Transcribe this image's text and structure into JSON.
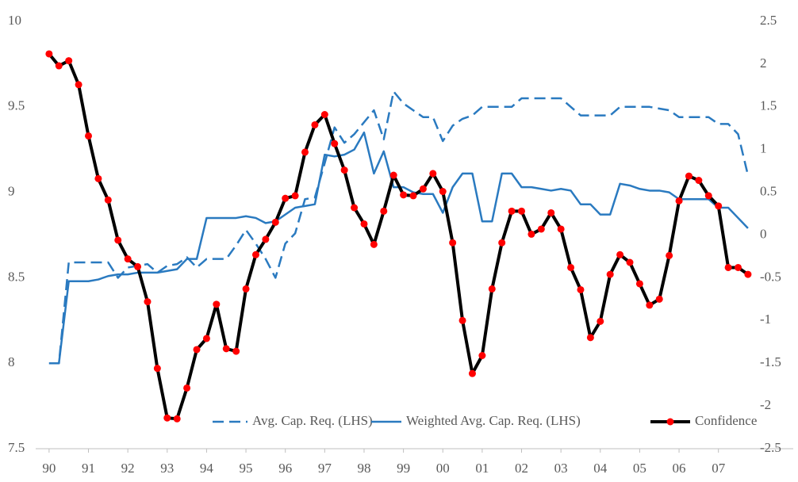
{
  "chart_data": {
    "type": "line",
    "x": [
      1990,
      1990.25,
      1990.5,
      1990.75,
      1991,
      1991.25,
      1991.5,
      1991.75,
      1992,
      1992.25,
      1992.5,
      1992.75,
      1993,
      1993.25,
      1993.5,
      1993.75,
      1994,
      1994.25,
      1994.5,
      1994.75,
      1995,
      1995.25,
      1995.5,
      1995.75,
      1996,
      1996.25,
      1996.5,
      1996.75,
      1997,
      1997.25,
      1997.5,
      1997.75,
      1998,
      1998.25,
      1998.5,
      1998.75,
      1999,
      1999.25,
      1999.5,
      1999.75,
      2000,
      2000.25,
      2000.5,
      2000.75,
      2001,
      2001.25,
      2001.5,
      2001.75,
      2002,
      2002.25,
      2002.5,
      2002.75,
      2003,
      2003.25,
      2003.5,
      2003.75,
      2004,
      2004.25,
      2004.5,
      2004.75,
      2005,
      2005.25,
      2005.5,
      2005.75,
      2006,
      2006.25,
      2006.5,
      2006.75,
      2007,
      2007.25,
      2007.5,
      2007.75
    ],
    "series": [
      {
        "name": "Avg. Cap. Req. (LHS)",
        "color": "#2a7ac0",
        "dash": true,
        "axis": "y",
        "values": [
          8.0,
          8.0,
          8.59,
          8.59,
          8.59,
          8.59,
          8.59,
          8.5,
          8.56,
          8.57,
          8.58,
          8.53,
          8.57,
          8.58,
          8.62,
          8.56,
          8.61,
          8.61,
          8.61,
          8.69,
          8.78,
          8.7,
          8.61,
          8.5,
          8.7,
          8.76,
          8.96,
          8.97,
          9.17,
          9.38,
          9.29,
          9.34,
          9.41,
          9.48,
          9.31,
          9.59,
          9.52,
          9.48,
          9.44,
          9.44,
          9.3,
          9.39,
          9.43,
          9.45,
          9.5,
          9.5,
          9.5,
          9.5,
          9.55,
          9.55,
          9.55,
          9.55,
          9.55,
          9.5,
          9.45,
          9.45,
          9.45,
          9.45,
          9.5,
          9.5,
          9.5,
          9.5,
          9.49,
          9.48,
          9.44,
          9.44,
          9.44,
          9.44,
          9.4,
          9.4,
          9.34,
          9.1
        ]
      },
      {
        "name": "Weighted Avg. Cap. Req. (LHS)",
        "color": "#2a7ac0",
        "dash": false,
        "axis": "y",
        "values": [
          8.0,
          8.0,
          8.48,
          8.48,
          8.48,
          8.49,
          8.51,
          8.52,
          8.52,
          8.53,
          8.53,
          8.53,
          8.54,
          8.55,
          8.61,
          8.61,
          8.85,
          8.85,
          8.85,
          8.85,
          8.86,
          8.85,
          8.82,
          8.83,
          8.87,
          8.91,
          8.92,
          8.93,
          9.22,
          9.21,
          9.22,
          9.25,
          9.35,
          9.11,
          9.24,
          9.03,
          9.03,
          9.0,
          8.99,
          8.99,
          8.88,
          9.03,
          9.11,
          9.11,
          8.83,
          8.83,
          9.11,
          9.11,
          9.03,
          9.03,
          9.02,
          9.01,
          9.02,
          9.01,
          8.93,
          8.93,
          8.87,
          8.87,
          9.05,
          9.04,
          9.02,
          9.01,
          9.01,
          9.0,
          8.96,
          8.96,
          8.96,
          8.96,
          8.91,
          8.91,
          8.85,
          8.79
        ]
      },
      {
        "name": "Confidence",
        "color": "#000000",
        "marker_color": "#ff0000",
        "dash": false,
        "axis": "y2",
        "values": [
          2.12,
          1.98,
          2.04,
          1.76,
          1.16,
          0.66,
          0.41,
          -0.06,
          -0.28,
          -0.37,
          -0.78,
          -1.56,
          -2.14,
          -2.15,
          -1.79,
          -1.34,
          -1.21,
          -0.81,
          -1.33,
          -1.36,
          -0.63,
          -0.23,
          -0.05,
          0.15,
          0.43,
          0.46,
          0.97,
          1.29,
          1.41,
          1.07,
          0.76,
          0.32,
          0.13,
          -0.11,
          0.28,
          0.7,
          0.47,
          0.46,
          0.54,
          0.72,
          0.51,
          -0.09,
          -1.0,
          -1.62,
          -1.41,
          -0.63,
          -0.09,
          0.28,
          0.28,
          0.01,
          0.07,
          0.26,
          0.07,
          -0.38,
          -0.64,
          -1.2,
          -1.01,
          -0.46,
          -0.23,
          -0.32,
          -0.57,
          -0.82,
          -0.75,
          -0.24,
          0.4,
          0.69,
          0.64,
          0.46,
          0.34,
          -0.38,
          -0.38,
          -0.46
        ]
      }
    ],
    "xlim": [
      1989.66,
      2008.9
    ],
    "xticks": [
      {
        "value": 1990,
        "label": "90"
      },
      {
        "value": 1991,
        "label": "91"
      },
      {
        "value": 1992,
        "label": "92"
      },
      {
        "value": 1993,
        "label": "93"
      },
      {
        "value": 1994,
        "label": "94"
      },
      {
        "value": 1995,
        "label": "95"
      },
      {
        "value": 1996,
        "label": "96"
      },
      {
        "value": 1997,
        "label": "97"
      },
      {
        "value": 1998,
        "label": "98"
      },
      {
        "value": 1999,
        "label": "99"
      },
      {
        "value": 2000,
        "label": "00"
      },
      {
        "value": 2001,
        "label": "01"
      },
      {
        "value": 2002,
        "label": "02"
      },
      {
        "value": 2003,
        "label": "03"
      },
      {
        "value": 2004,
        "label": "04"
      },
      {
        "value": 2005,
        "label": "05"
      },
      {
        "value": 2006,
        "label": "06"
      },
      {
        "value": 2007,
        "label": "07"
      }
    ],
    "ylim": [
      7.5,
      10
    ],
    "yticks": [
      7.5,
      8,
      8.5,
      9,
      9.5,
      10
    ],
    "y2lim": [
      -2.5,
      2.5
    ],
    "y2ticks": [
      -2.5,
      -2,
      -1.5,
      -1,
      -0.5,
      0,
      0.5,
      1,
      1.5,
      2,
      2.5
    ],
    "grid": false,
    "legend": "lower right"
  }
}
